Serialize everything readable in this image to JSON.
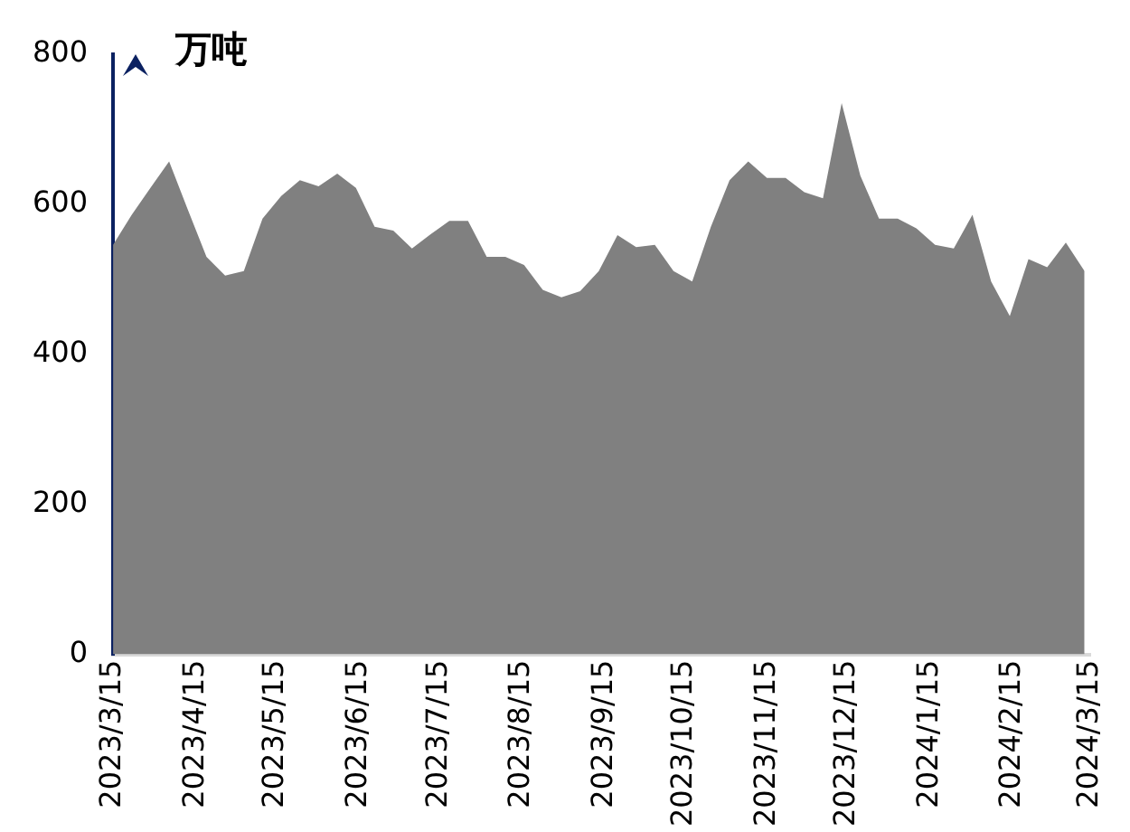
{
  "chart_data": {
    "type": "area",
    "ylabel": "万吨",
    "x": [
      "2023-03-15",
      "2023-03-22",
      "2023-03-29",
      "2023-04-05",
      "2023-04-12",
      "2023-04-19",
      "2023-04-26",
      "2023-05-03",
      "2023-05-10",
      "2023-05-17",
      "2023-05-24",
      "2023-05-31",
      "2023-06-07",
      "2023-06-14",
      "2023-06-21",
      "2023-06-28",
      "2023-07-05",
      "2023-07-12",
      "2023-07-19",
      "2023-07-26",
      "2023-08-02",
      "2023-08-09",
      "2023-08-16",
      "2023-08-23",
      "2023-08-30",
      "2023-09-06",
      "2023-09-13",
      "2023-09-20",
      "2023-09-27",
      "2023-10-04",
      "2023-10-11",
      "2023-10-18",
      "2023-10-25",
      "2023-11-01",
      "2023-11-08",
      "2023-11-15",
      "2023-11-22",
      "2023-11-29",
      "2023-12-06",
      "2023-12-13",
      "2023-12-20",
      "2023-12-27",
      "2024-01-03",
      "2024-01-10",
      "2024-01-17",
      "2024-01-24",
      "2024-01-31",
      "2024-02-07",
      "2024-02-14",
      "2024-02-21",
      "2024-02-28",
      "2024-03-06",
      "2024-03-13"
    ],
    "series": [
      {
        "color": "#808080",
        "values": [
          546,
          586,
          622,
          657,
          593,
          530,
          505,
          511,
          581,
          611,
          632,
          624,
          641,
          622,
          570,
          565,
          541,
          560,
          578,
          578,
          530,
          530,
          519,
          486,
          476,
          484,
          511,
          559,
          543,
          546,
          511,
          497,
          570,
          632,
          657,
          635,
          635,
          616,
          608,
          735,
          638,
          581,
          581,
          568,
          546,
          541,
          586,
          497,
          451,
          527,
          516,
          549,
          511
        ]
      }
    ],
    "xlim": [
      "2023-03-15",
      "2024-03-15"
    ],
    "xticks": [
      {
        "value": "2023-03-15",
        "label": "2023/3/15"
      },
      {
        "value": "2023-04-15",
        "label": "2023/4/15"
      },
      {
        "value": "2023-05-15",
        "label": "2023/5/15"
      },
      {
        "value": "2023-06-15",
        "label": "2023/6/15"
      },
      {
        "value": "2023-07-15",
        "label": "2023/7/15"
      },
      {
        "value": "2023-08-15",
        "label": "2023/8/15"
      },
      {
        "value": "2023-09-15",
        "label": "2023/9/15"
      },
      {
        "value": "2023-10-15",
        "label": "2023/10/15"
      },
      {
        "value": "2023-11-15",
        "label": "2023/11/15"
      },
      {
        "value": "2023-12-15",
        "label": "2023/12/15"
      },
      {
        "value": "2024-01-15",
        "label": "2024/1/15"
      },
      {
        "value": "2024-02-15",
        "label": "2024/2/15"
      },
      {
        "value": "2024-03-15",
        "label": "2024/3/15"
      }
    ],
    "ylim": [
      0,
      800
    ],
    "yticks": [
      0,
      200,
      400,
      600,
      800
    ],
    "grid": false,
    "legend": false
  }
}
